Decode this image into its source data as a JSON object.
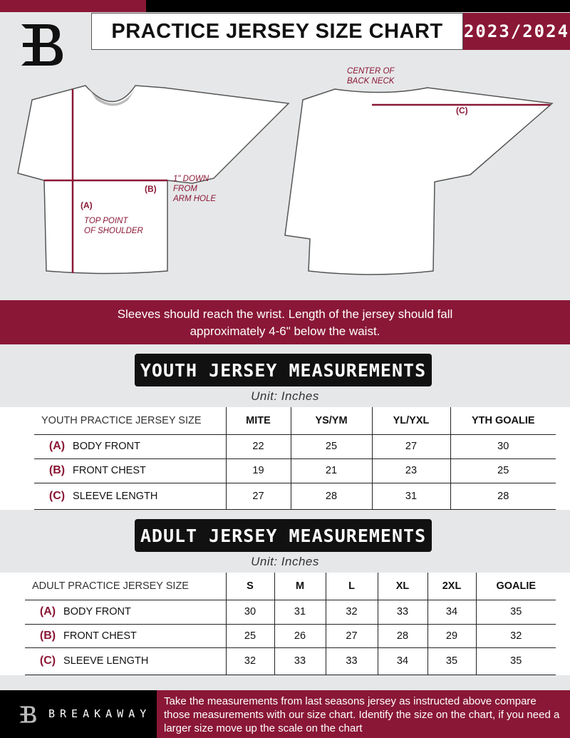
{
  "header": {
    "title": "PRACTICE JERSEY SIZE CHART",
    "season": "2023/2024"
  },
  "diagram": {
    "center_back_neck": "CENTER OF\nBACK NECK",
    "label_a": "(A)",
    "label_b": "(B)",
    "label_c": "(C)",
    "arm_hole_note": "1\" DOWN\nFROM\nARM HOLE",
    "shoulder_note": "TOP POINT\nOF SHOULDER"
  },
  "banner": {
    "line1": "Sleeves should reach the wrist. Length of the jersey should fall",
    "line2": "approximately 4-6\" below the waist."
  },
  "youth": {
    "title": "YOUTH JERSEY MEASUREMENTS",
    "unit": "Unit: Inches",
    "header": "YOUTH PRACTICE JERSEY SIZE",
    "sizes": [
      "MITE",
      "YS/YM",
      "YL/YXL",
      "YTH GOALIE"
    ],
    "rows": [
      {
        "code": "(A)",
        "label": "BODY FRONT",
        "values": [
          "22",
          "25",
          "27",
          "30"
        ]
      },
      {
        "code": "(B)",
        "label": "FRONT CHEST",
        "values": [
          "19",
          "21",
          "23",
          "25"
        ]
      },
      {
        "code": "(C)",
        "label": "SLEEVE LENGTH",
        "values": [
          "27",
          "28",
          "31",
          "28"
        ]
      }
    ]
  },
  "adult": {
    "title": "ADULT JERSEY MEASUREMENTS",
    "unit": "Unit: Inches",
    "header": "ADULT PRACTICE JERSEY SIZE",
    "sizes": [
      "S",
      "M",
      "L",
      "XL",
      "2XL",
      "GOALIE"
    ],
    "rows": [
      {
        "code": "(A)",
        "label": "BODY FRONT",
        "values": [
          "30",
          "31",
          "32",
          "33",
          "34",
          "35"
        ]
      },
      {
        "code": "(B)",
        "label": "FRONT CHEST",
        "values": [
          "25",
          "26",
          "27",
          "28",
          "29",
          "32"
        ]
      },
      {
        "code": "(C)",
        "label": "SLEEVE LENGTH",
        "values": [
          "32",
          "33",
          "33",
          "34",
          "35",
          "35"
        ]
      }
    ]
  },
  "footer": {
    "brand": "BREAKAWAY",
    "text": "Take the measurements from last seasons jersey as instructed above compare those measurements  with our size chart. Identify the size on the chart, if you need a larger size move up the scale on the chart"
  },
  "colors": {
    "accent": "#8a1736",
    "dark": "#000000",
    "background": "#e6e7e8"
  }
}
